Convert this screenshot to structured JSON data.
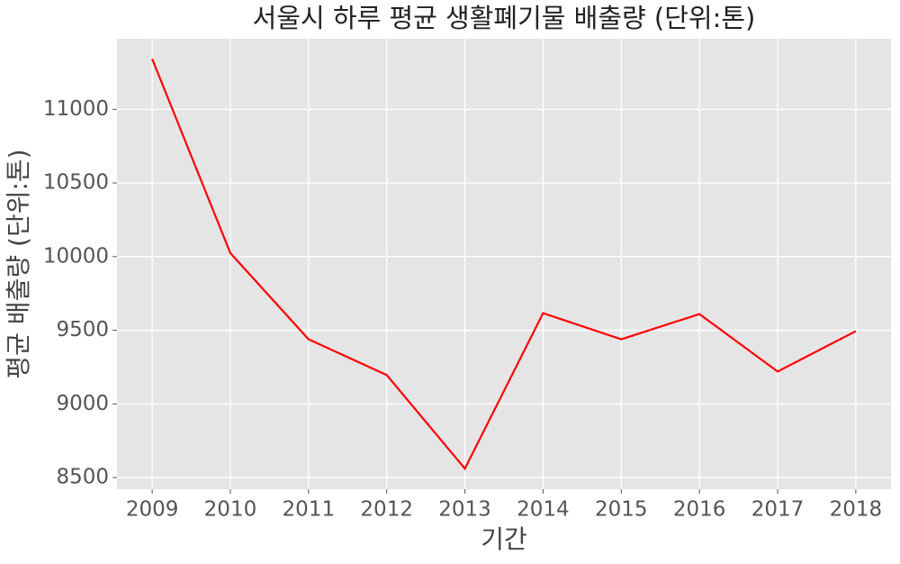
{
  "chart_data": {
    "type": "line",
    "title": "서울시 하루 평균 생활폐기물 배출량 (단위:톤)",
    "x_label": "기간",
    "y_label": "평균 배출량 (단위:톤)",
    "x": [
      2009,
      2010,
      2011,
      2012,
      2013,
      2014,
      2015,
      2016,
      2017,
      2018
    ],
    "series": [
      {
        "name": "배출량",
        "color": "#ff0000",
        "values": [
          11342,
          10024,
          9439,
          9196,
          8561,
          9616,
          9439,
          9610,
          9220,
          9494
        ]
      }
    ],
    "xlim": [
      2008.55,
      2018.45
    ],
    "xticks": [
      2009,
      2010,
      2011,
      2012,
      2013,
      2014,
      2015,
      2016,
      2017,
      2018
    ],
    "ylim": [
      8421,
      11479
    ],
    "yticks": [
      8500,
      9000,
      9500,
      10000,
      10500,
      11000
    ],
    "grid": true
  }
}
